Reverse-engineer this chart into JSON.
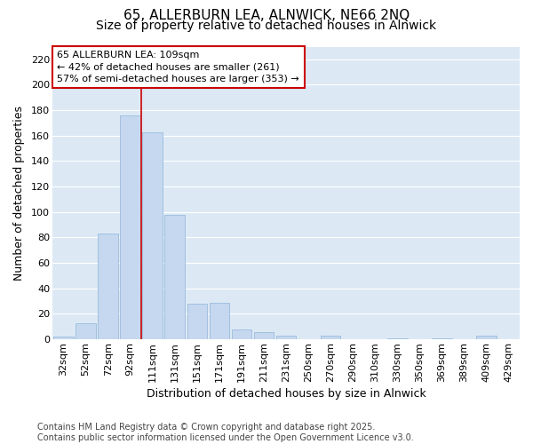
{
  "title1": "65, ALLERBURN LEA, ALNWICK, NE66 2NQ",
  "title2": "Size of property relative to detached houses in Alnwick",
  "xlabel": "Distribution of detached houses by size in Alnwick",
  "ylabel": "Number of detached properties",
  "footer_line1": "Contains HM Land Registry data © Crown copyright and database right 2025.",
  "footer_line2": "Contains public sector information licensed under the Open Government Licence v3.0.",
  "categories": [
    "32sqm",
    "52sqm",
    "72sqm",
    "92sqm",
    "111sqm",
    "131sqm",
    "151sqm",
    "171sqm",
    "191sqm",
    "211sqm",
    "231sqm",
    "250sqm",
    "270sqm",
    "290sqm",
    "310sqm",
    "330sqm",
    "350sqm",
    "369sqm",
    "389sqm",
    "409sqm",
    "429sqm"
  ],
  "values": [
    2,
    13,
    83,
    176,
    163,
    98,
    28,
    29,
    8,
    6,
    3,
    0,
    3,
    0,
    0,
    1,
    0,
    1,
    0,
    3,
    0
  ],
  "bar_color": "#c5d8ef",
  "bar_edge_color": "#9bbcdb",
  "vline_color": "#cc0000",
  "vline_x": 3.5,
  "annotation_line1": "65 ALLERBURN LEA: 109sqm",
  "annotation_line2": "← 42% of detached houses are smaller (261)",
  "annotation_line3": "57% of semi-detached houses are larger (353) →",
  "annotation_box_edge": "#cc0000",
  "ylim": [
    0,
    230
  ],
  "yticks": [
    0,
    20,
    40,
    60,
    80,
    100,
    120,
    140,
    160,
    180,
    200,
    220
  ],
  "plot_bg_color": "#dce9f5",
  "fig_bg_color": "#ffffff",
  "grid_color": "#ffffff",
  "title_fontsize": 11,
  "subtitle_fontsize": 10,
  "axis_label_fontsize": 9,
  "tick_fontsize": 8,
  "footer_fontsize": 7,
  "annotation_fontsize": 8
}
